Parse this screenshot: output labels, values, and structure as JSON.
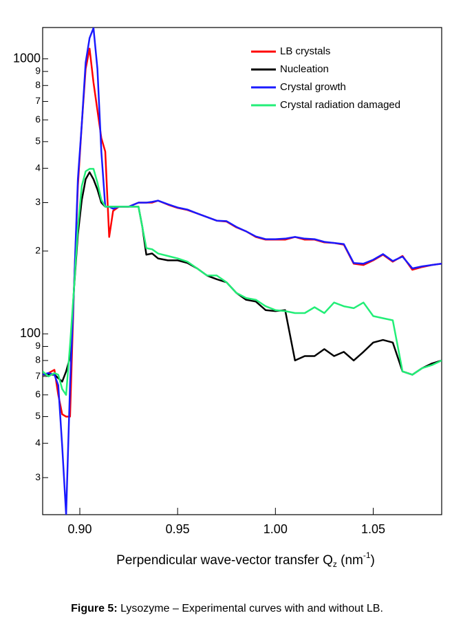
{
  "chart_data": {
    "type": "line",
    "yscale": "log",
    "x": [
      0.881,
      0.884,
      0.887,
      0.889,
      0.891,
      0.893,
      0.895,
      0.897,
      0.899,
      0.901,
      0.903,
      0.905,
      0.907,
      0.909,
      0.911,
      0.913,
      0.915,
      0.917,
      0.92,
      0.925,
      0.93,
      0.932,
      0.934,
      0.937,
      0.94,
      0.945,
      0.95,
      0.955,
      0.96,
      0.965,
      0.97,
      0.975,
      0.98,
      0.985,
      0.99,
      0.995,
      1.0,
      1.005,
      1.01,
      1.015,
      1.02,
      1.025,
      1.03,
      1.035,
      1.04,
      1.045,
      1.05,
      1.055,
      1.06,
      1.065,
      1.07,
      1.075,
      1.08,
      1.085
    ],
    "series": [
      {
        "name": "LB crystals",
        "color": "#ff0000",
        "values": [
          71,
          72,
          74,
          60,
          51,
          50,
          50,
          145,
          345,
          580,
          920,
          1090,
          820,
          650,
          515,
          460,
          225,
          280,
          290,
          290,
          300,
          300,
          300,
          300,
          305,
          295,
          287,
          282,
          274,
          266,
          258,
          256,
          244,
          236,
          225,
          220,
          220,
          220,
          225,
          220,
          220,
          215,
          214,
          211,
          180,
          178,
          185,
          194,
          183,
          192,
          171,
          175,
          178,
          180
        ]
      },
      {
        "name": "Nucleation",
        "color": "#000000",
        "values": [
          71,
          71,
          71,
          69,
          67,
          73,
          82,
          145,
          230,
          307,
          365,
          387,
          365,
          335,
          300,
          290,
          290,
          290,
          290,
          290,
          290,
          244,
          194,
          196,
          188,
          185,
          185,
          181,
          173,
          163,
          158,
          154,
          141,
          133,
          131,
          122,
          121,
          122,
          80,
          83,
          83,
          88,
          83,
          86,
          80,
          86,
          93,
          95,
          93,
          73,
          71,
          75,
          78,
          80
        ]
      },
      {
        "name": "Crystal growth",
        "color": "#1a1aff",
        "values": [
          71,
          72,
          71,
          65,
          39,
          22,
          65,
          145,
          365,
          580,
          970,
          1190,
          1295,
          920,
          460,
          290,
          290,
          285,
          290,
          290,
          300,
          300,
          300,
          302,
          305,
          296,
          288,
          283,
          274,
          266,
          258,
          257,
          245,
          236,
          226,
          221,
          221,
          222,
          225,
          222,
          221,
          216,
          214,
          212,
          181,
          180,
          186,
          195,
          184,
          191,
          173,
          176,
          178,
          180
        ]
      },
      {
        "name": "Crystal radiation damaged",
        "color": "#22ee77",
        "values": [
          73,
          70,
          72,
          71,
          63,
          60,
          91,
          145,
          244,
          345,
          390,
          398,
          398,
          355,
          307,
          290,
          290,
          290,
          290,
          290,
          290,
          244,
          205,
          203,
          196,
          192,
          188,
          183,
          173,
          163,
          163,
          154,
          141,
          135,
          133,
          126,
          122,
          121,
          119,
          119,
          125,
          119,
          130,
          126,
          124,
          130,
          116,
          114,
          112,
          73,
          71,
          75,
          77,
          80
        ]
      }
    ],
    "xlim": [
      0.881,
      1.085
    ],
    "ylim": [
      22,
      1300
    ],
    "xticks": [
      {
        "value": 0.9,
        "label": "0.90"
      },
      0.95,
      {
        "value": 1.0,
        "label": "1.00"
      },
      1.05
    ],
    "yticks": [
      {
        "value": 30,
        "label": "3"
      },
      {
        "value": 40,
        "label": "4"
      },
      {
        "value": 50,
        "label": "5"
      },
      {
        "value": 60,
        "label": "6"
      },
      {
        "value": 70,
        "label": "7"
      },
      {
        "value": 80,
        "label": "8"
      },
      {
        "value": 90,
        "label": "9"
      },
      100,
      {
        "value": 200,
        "label": "2"
      },
      {
        "value": 300,
        "label": "3"
      },
      {
        "value": 400,
        "label": "4"
      },
      {
        "value": 500,
        "label": "5"
      },
      {
        "value": 600,
        "label": "6"
      },
      {
        "value": 700,
        "label": "7"
      },
      {
        "value": 800,
        "label": "8"
      },
      {
        "value": 900,
        "label": "9"
      },
      1000
    ],
    "legend": "upper right",
    "x_label": {
      "text": "Perpendicular wave-vector transfer Q",
      "subscript": "z",
      "unit": " (nm",
      "superscript": "-1",
      "close": ")"
    },
    "caption": {
      "label": "Figure 5:",
      "text": " Lysozyme – Experimental curves with and without LB."
    }
  }
}
